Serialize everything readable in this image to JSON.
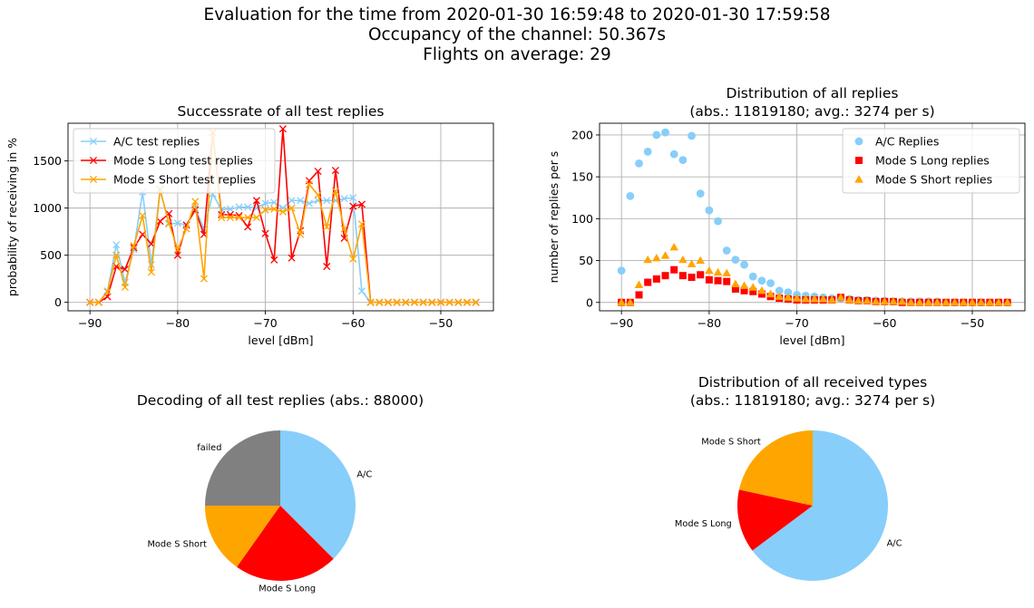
{
  "figure": {
    "suptitle_lines": [
      "Evaluation for the time from 2020-01-30 16:59:48 to 2020-01-30 17:59:58",
      "Occupancy of the channel: 50.367s",
      "Flights on average: 29"
    ]
  },
  "colors": {
    "ac": "#87cefa",
    "long": "#ff0000",
    "short": "#ffa500",
    "failed": "#808080",
    "grid": "#b0b0b0"
  },
  "chart_data": [
    {
      "type": "line",
      "title": "Successrate of all test replies",
      "xlabel": "level [dBm]",
      "ylabel": "probability of receiving in %",
      "xlim": [
        -92.5,
        -44
      ],
      "ylim": [
        -90,
        1900
      ],
      "xticks": [
        -90,
        -80,
        -70,
        -60,
        -50
      ],
      "yticks": [
        0,
        500,
        1000,
        1500
      ],
      "grid": true,
      "legend": "top-left",
      "marker": "x",
      "x": [
        -90,
        -89,
        -88,
        -87,
        -86,
        -85,
        -84,
        -83,
        -82,
        -81,
        -80,
        -79,
        -78,
        -77,
        -76,
        -75,
        -74,
        -73,
        -72,
        -71,
        -70,
        -69,
        -68,
        -67,
        -66,
        -65,
        -64,
        -63,
        -62,
        -61,
        -60,
        -59,
        -58,
        -57,
        -56,
        -55,
        -54,
        -53,
        -52,
        -51,
        -50,
        -49,
        -48,
        -47,
        -46
      ],
      "series": [
        {
          "name": "A/C test replies",
          "color": "#87cefa",
          "values": [
            0,
            0,
            120,
            610,
            210,
            560,
            1170,
            400,
            1200,
            830,
            840,
            820,
            1000,
            780,
            1150,
            980,
            990,
            1010,
            1010,
            1000,
            1050,
            1060,
            1000,
            1080,
            1080,
            1050,
            1080,
            1080,
            1080,
            1100,
            1110,
            120,
            0,
            0,
            0,
            0,
            0,
            0,
            0,
            0,
            0,
            0,
            0,
            0,
            0
          ]
        },
        {
          "name": "Mode S Long test replies",
          "color": "#ff0000",
          "values": [
            0,
            0,
            60,
            380,
            350,
            580,
            720,
            620,
            860,
            940,
            500,
            820,
            980,
            720,
            1800,
            930,
            930,
            920,
            800,
            1080,
            730,
            450,
            1840,
            470,
            760,
            1290,
            1390,
            380,
            1400,
            680,
            1020,
            1040,
            0,
            0,
            0,
            0,
            0,
            0,
            0,
            0,
            0,
            0,
            0,
            0,
            0
          ]
        },
        {
          "name": "Mode S Short test replies",
          "color": "#ffa500",
          "values": [
            0,
            0,
            110,
            500,
            160,
            600,
            920,
            320,
            1190,
            840,
            560,
            780,
            1070,
            250,
            1800,
            900,
            900,
            900,
            900,
            900,
            980,
            990,
            960,
            1000,
            720,
            1250,
            1140,
            800,
            1180,
            780,
            460,
            830,
            0,
            0,
            0,
            0,
            0,
            0,
            0,
            0,
            0,
            0,
            0,
            0,
            0
          ]
        }
      ]
    },
    {
      "type": "scatter",
      "title": "Distribution of all replies",
      "subtitle": "(abs.: 11819180; avg.: 3274 per s)",
      "xlabel": "level [dBm]",
      "ylabel": "number of replies per s",
      "xlim": [
        -92.5,
        -44
      ],
      "ylim": [
        -10,
        214
      ],
      "xticks": [
        -90,
        -80,
        -70,
        -60,
        -50
      ],
      "yticks": [
        0,
        50,
        100,
        150,
        200
      ],
      "grid": true,
      "legend": "top-right",
      "x": [
        -90,
        -89,
        -88,
        -87,
        -86,
        -85,
        -84,
        -83,
        -82,
        -81,
        -80,
        -79,
        -78,
        -77,
        -76,
        -75,
        -74,
        -73,
        -72,
        -71,
        -70,
        -69,
        -68,
        -67,
        -66,
        -65,
        -64,
        -63,
        -62,
        -61,
        -60,
        -59,
        -58,
        -57,
        -56,
        -55,
        -54,
        -53,
        -52,
        -51,
        -50,
        -49,
        -48,
        -47,
        -46
      ],
      "series": [
        {
          "name": "A/C Replies",
          "marker": "circle",
          "color": "#87cefa",
          "values": [
            38,
            127,
            166,
            180,
            200,
            203,
            177,
            170,
            199,
            130,
            110,
            97,
            62,
            51,
            45,
            31,
            26,
            23,
            14,
            12,
            9,
            8,
            7,
            6,
            5,
            5,
            4,
            3,
            3,
            2,
            2,
            1,
            1,
            1,
            1,
            1,
            1,
            0,
            0,
            0,
            0,
            0,
            0,
            0,
            0
          ]
        },
        {
          "name": "Mode S Long replies",
          "marker": "square",
          "color": "#ff0000",
          "values": [
            0,
            0,
            9,
            24,
            28,
            32,
            39,
            32,
            30,
            33,
            27,
            26,
            25,
            16,
            14,
            13,
            10,
            7,
            5,
            4,
            3,
            3,
            3,
            3,
            3,
            6,
            3,
            2,
            2,
            1,
            1,
            1,
            0,
            0,
            0,
            0,
            0,
            0,
            0,
            0,
            0,
            0,
            0,
            0,
            0
          ]
        },
        {
          "name": "Mode S Short replies",
          "marker": "triangle",
          "color": "#ffa500",
          "values": [
            0,
            0,
            21,
            51,
            53,
            56,
            66,
            51,
            46,
            50,
            38,
            36,
            35,
            22,
            20,
            18,
            14,
            10,
            7,
            6,
            5,
            4,
            4,
            4,
            3,
            6,
            3,
            2,
            2,
            1,
            1,
            1,
            1,
            0,
            0,
            0,
            0,
            0,
            0,
            0,
            0,
            0,
            0,
            0,
            0
          ]
        }
      ]
    },
    {
      "type": "pie",
      "title": "Decoding of all test replies (abs.: 88000)",
      "start_angle_deg": 90,
      "direction": "clockwise",
      "labels": [
        "A/C",
        "Mode S Long",
        "Mode S Short",
        "failed"
      ],
      "values": [
        37.5,
        22.3,
        15.2,
        25.0
      ],
      "colors": [
        "#87cefa",
        "#ff0000",
        "#ffa500",
        "#808080"
      ]
    },
    {
      "type": "pie",
      "title": "Distribution of all received types",
      "subtitle": "(abs.: 11819180; avg.: 3274 per s)",
      "start_angle_deg": 90,
      "direction": "clockwise",
      "labels": [
        "A/C",
        "Mode S Long",
        "Mode S Short"
      ],
      "values": [
        64.8,
        13.6,
        21.6
      ],
      "colors": [
        "#87cefa",
        "#ff0000",
        "#ffa500"
      ]
    }
  ]
}
